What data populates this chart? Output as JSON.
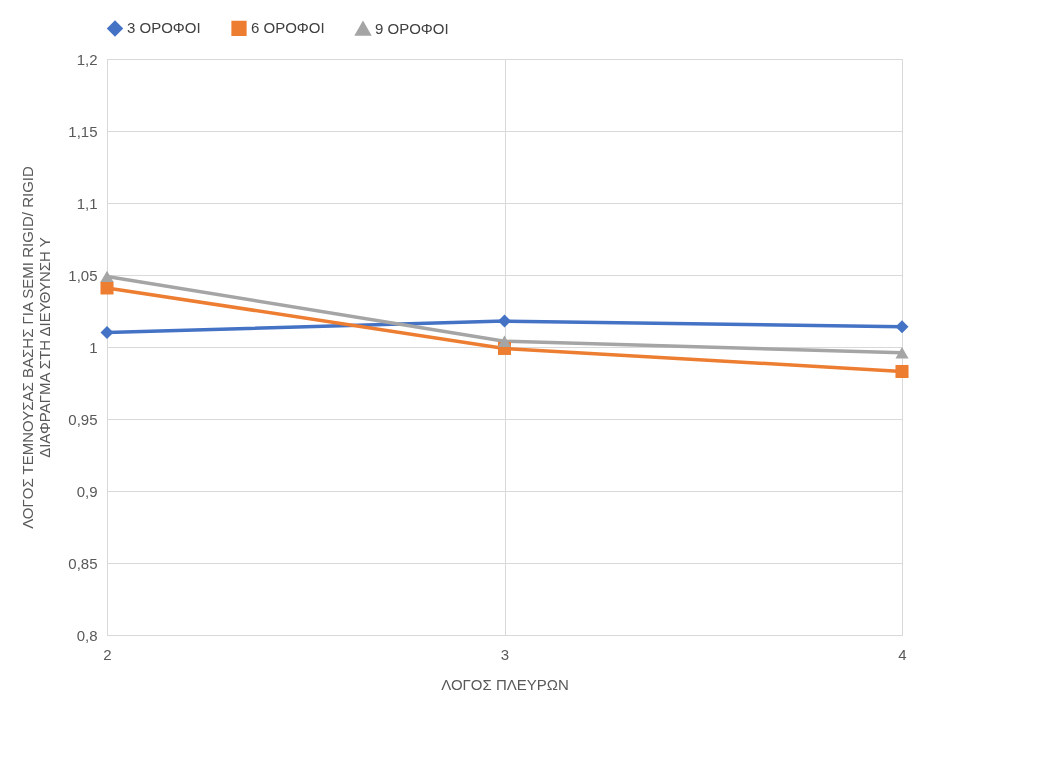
{
  "chart_data": {
    "type": "line",
    "xlabel": "ΛΟΓΟΣ ΠΛΕΥΡΩΝ",
    "ylabel": "ΛΟΓΟΣ ΤΕΜΝΟΥΣΑΣ ΒΑΣΗΣ ΓΙΑ  SEMI RIGID/ RIGID\nΔΙΑΦΡΑΓΜΑ ΣΤΗ ΔΙΕΥΘΥΝΣΗ  Υ",
    "x": [
      2,
      3,
      4
    ],
    "series": [
      {
        "name": "3 ΟΡΟΦΟΙ",
        "color": "#4472c4",
        "marker": "diamond",
        "values": [
          1.01,
          1.018,
          1.014
        ]
      },
      {
        "name": "6 ΟΡΟΦΟΙ",
        "color": "#ed7d31",
        "marker": "square",
        "values": [
          1.041,
          0.999,
          0.983
        ]
      },
      {
        "name": "9 ΟΡΟΦΟΙ",
        "color": "#a5a5a5",
        "marker": "triangle",
        "values": [
          1.049,
          1.004,
          0.996
        ]
      }
    ],
    "xlim": [
      2,
      4
    ],
    "xticks": [
      2,
      3,
      4
    ],
    "ylim": [
      0.8,
      1.2
    ],
    "yticks": [
      {
        "value": 0.8,
        "label": "0,8"
      },
      {
        "value": 0.85,
        "label": "0,85"
      },
      {
        "value": 0.9,
        "label": "0,9"
      },
      {
        "value": 0.95,
        "label": "0,95"
      },
      {
        "value": 1,
        "label": "1"
      },
      {
        "value": 1.05,
        "label": "1,05"
      },
      {
        "value": 1.1,
        "label": "1,1"
      },
      {
        "value": 1.15,
        "label": "1,15"
      },
      {
        "value": 1.2,
        "label": "1,2"
      }
    ],
    "grid": true,
    "legend": "top",
    "line_style": "solid"
  }
}
